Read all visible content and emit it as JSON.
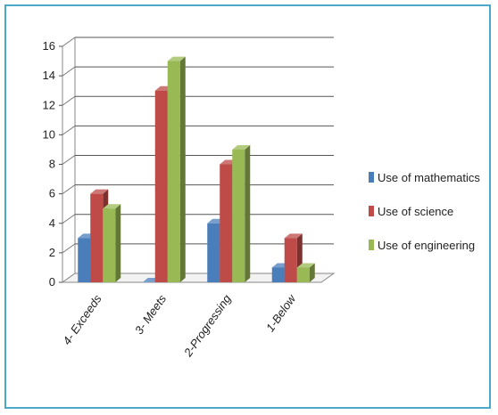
{
  "chart_data": {
    "type": "bar",
    "style": "3d-clustered-column",
    "categories": [
      "4- Exceeds",
      "3- Meets",
      "2-Progressing",
      "1-Below"
    ],
    "series": [
      {
        "name": "Use of mathematics",
        "values": [
          3,
          0,
          4,
          1
        ],
        "color": "#4a7ebb"
      },
      {
        "name": "Use of science",
        "values": [
          6,
          13,
          8,
          3
        ],
        "color": "#be4b48"
      },
      {
        "name": "Use of engineering",
        "values": [
          5,
          15,
          9,
          1
        ],
        "color": "#98b954"
      }
    ],
    "title": "",
    "xlabel": "",
    "ylabel": "",
    "ylim": [
      0,
      16
    ],
    "yticks": [
      0,
      2,
      4,
      6,
      8,
      10,
      12,
      14,
      16
    ],
    "grid": true,
    "legend": "right"
  }
}
